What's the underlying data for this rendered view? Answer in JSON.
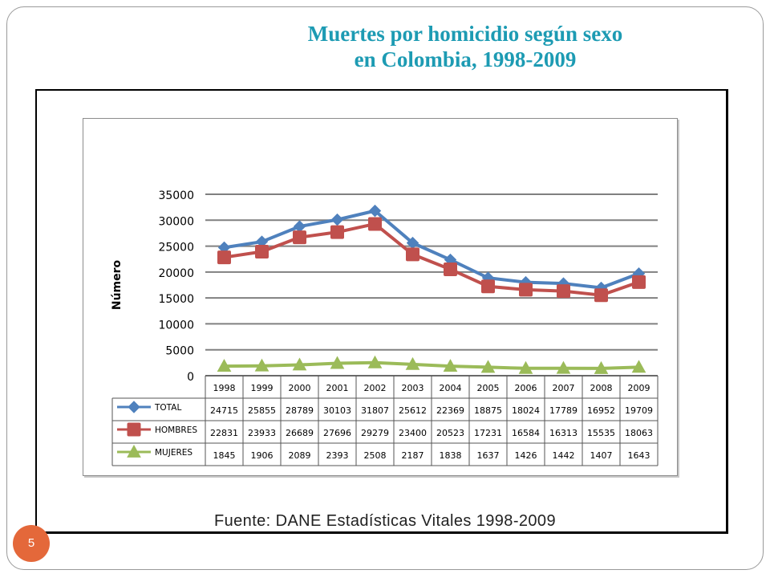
{
  "slide": {
    "title_line1": "Muertes por homicidio según sexo",
    "title_line2": "en Colombia, 1998-2009",
    "source": "Fuente: DANE Estadísticas Vitales 1998-2009",
    "page_number": "5"
  },
  "colors": {
    "title": "#1d9bb3",
    "total": "#4f81bd",
    "hombres": "#c0504d",
    "mujeres": "#9bbb59",
    "badge": "#e4683a"
  },
  "chart_data": {
    "type": "line",
    "title": "",
    "xlabel": "",
    "ylabel": "Número",
    "ylim": [
      0,
      35000
    ],
    "yticks": [
      0,
      5000,
      10000,
      15000,
      20000,
      25000,
      30000,
      35000
    ],
    "grid": true,
    "legend": "data-table-left",
    "categories": [
      "1998",
      "1999",
      "2000",
      "2001",
      "2002",
      "2003",
      "2004",
      "2005",
      "2006",
      "2007",
      "2008",
      "2009"
    ],
    "series": [
      {
        "name": "TOTAL",
        "color": "#4f81bd",
        "marker": "diamond",
        "values": [
          24715,
          25855,
          28789,
          30103,
          31807,
          25612,
          22369,
          18875,
          18024,
          17789,
          16952,
          19709
        ]
      },
      {
        "name": "HOMBRES",
        "color": "#c0504d",
        "marker": "square",
        "values": [
          22831,
          23933,
          26689,
          27696,
          29279,
          23400,
          20523,
          17231,
          16584,
          16313,
          15535,
          18063
        ]
      },
      {
        "name": "MUJERES",
        "color": "#9bbb59",
        "marker": "triangle",
        "values": [
          1845,
          1906,
          2089,
          2393,
          2508,
          2187,
          1838,
          1637,
          1426,
          1442,
          1407,
          1643
        ]
      }
    ]
  }
}
